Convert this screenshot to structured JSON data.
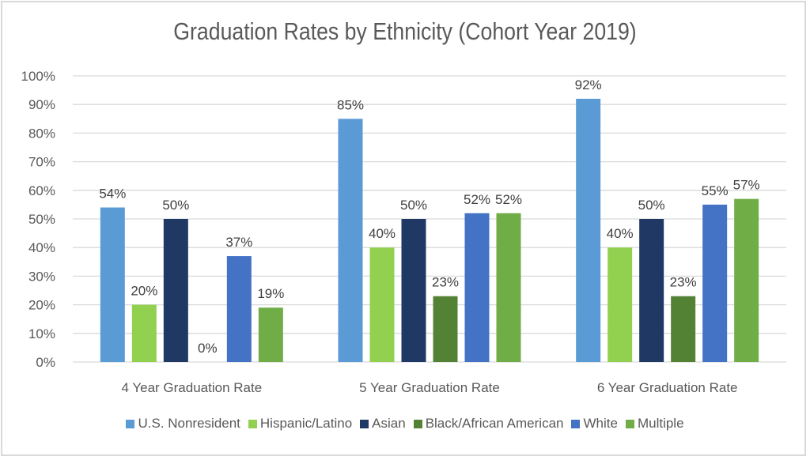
{
  "chart_data": {
    "type": "bar",
    "title": "Graduation Rates by Ethnicity (Cohort Year 2019)",
    "xlabel": "",
    "ylabel": "",
    "ylim": [
      0,
      100
    ],
    "yticks": [
      "0%",
      "10%",
      "20%",
      "30%",
      "40%",
      "50%",
      "60%",
      "70%",
      "80%",
      "90%",
      "100%"
    ],
    "grid": true,
    "legend_position": "bottom",
    "categories": [
      "4 Year Graduation Rate",
      "5 Year Graduation Rate",
      "6 Year Graduation Rate"
    ],
    "series": [
      {
        "name": "U.S. Nonresident",
        "color": "#5b9bd5",
        "values": [
          54,
          85,
          92
        ]
      },
      {
        "name": "Hispanic/Latino",
        "color": "#92d050",
        "values": [
          20,
          40,
          40
        ]
      },
      {
        "name": "Asian",
        "color": "#203864",
        "values": [
          50,
          50,
          50
        ]
      },
      {
        "name": "Black/African American",
        "color": "#548235",
        "values": [
          0,
          23,
          23
        ]
      },
      {
        "name": "White",
        "color": "#4472c4",
        "values": [
          37,
          52,
          55
        ]
      },
      {
        "name": "Multiple",
        "color": "#70ad47",
        "values": [
          19,
          52,
          57
        ]
      }
    ],
    "data_labels": [
      [
        "54%",
        "85%",
        "92%"
      ],
      [
        "20%",
        "40%",
        "40%"
      ],
      [
        "50%",
        "50%",
        "50%"
      ],
      [
        "0%",
        "23%",
        "23%"
      ],
      [
        "37%",
        "52%",
        "55%"
      ],
      [
        "19%",
        "52%",
        "57%"
      ]
    ]
  }
}
